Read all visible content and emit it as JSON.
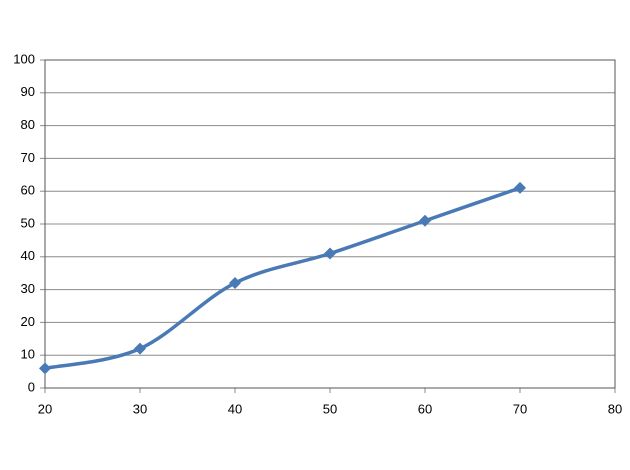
{
  "chart_data": {
    "type": "line",
    "x": [
      20,
      30,
      40,
      50,
      60,
      70
    ],
    "series": [
      {
        "color": "#4a7ab5",
        "values": [
          6,
          12,
          32,
          41,
          51,
          61
        ]
      }
    ],
    "xlim": [
      20,
      80
    ],
    "xticks": [
      20,
      30,
      40,
      50,
      60,
      70,
      80
    ],
    "ylim": [
      0,
      100
    ],
    "yticks": [
      0,
      10,
      20,
      30,
      40,
      50,
      60,
      70,
      80,
      90,
      100
    ],
    "grid": true,
    "smooth": true,
    "marker": "diamond"
  }
}
